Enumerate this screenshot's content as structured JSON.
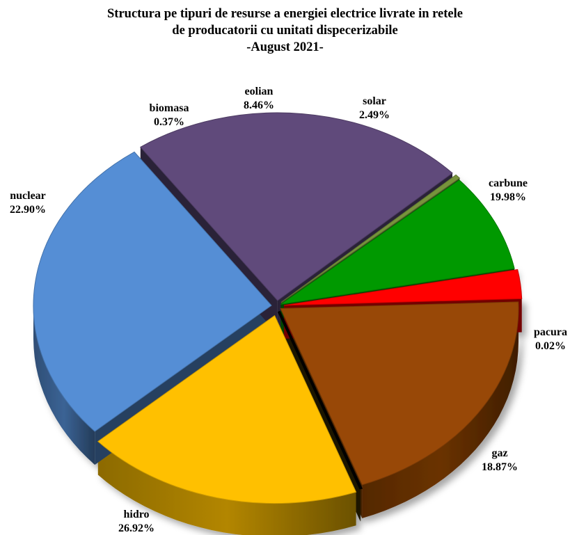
{
  "chart_data": {
    "type": "pie",
    "title": [
      "Structura pe tipuri de resurse a energiei electrice livrate in retele",
      "de producatorii cu unitati dispecerizabile",
      "-August 2021-"
    ],
    "value_unit": "%",
    "slices": [
      {
        "name": "carbune",
        "value": 19.98,
        "label": "19.98%",
        "color": "#984807"
      },
      {
        "name": "pacura",
        "value": 0.02,
        "label": "0.02%",
        "color": "#3a2a08"
      },
      {
        "name": "gaz",
        "value": 18.87,
        "label": "18.87%",
        "color": "#FFC000"
      },
      {
        "name": "hidro",
        "value": 26.92,
        "label": "26.92%",
        "color": "#558ED5"
      },
      {
        "name": "nuclear",
        "value": 22.9,
        "label": "22.90%",
        "color": "#604A7B"
      },
      {
        "name": "biomasa",
        "value": 0.37,
        "label": "0.37%",
        "color": "#77933C"
      },
      {
        "name": "eolian",
        "value": 8.46,
        "label": "8.46%",
        "color": "#009900"
      },
      {
        "name": "solar",
        "value": 2.49,
        "label": "2.49%",
        "color": "#FF0000"
      }
    ]
  }
}
